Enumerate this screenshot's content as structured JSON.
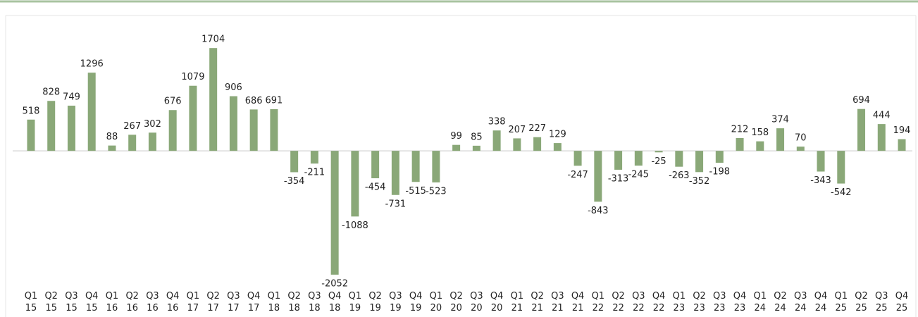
{
  "chart_data": {
    "type": "bar",
    "categories": [
      [
        "Q1",
        "15"
      ],
      [
        "Q2",
        "15"
      ],
      [
        "Q3",
        "15"
      ],
      [
        "Q4",
        "15"
      ],
      [
        "Q1",
        "16"
      ],
      [
        "Q2",
        "16"
      ],
      [
        "Q3",
        "16"
      ],
      [
        "Q4",
        "16"
      ],
      [
        "Q1",
        "17"
      ],
      [
        "Q2",
        "17"
      ],
      [
        "Q3",
        "17"
      ],
      [
        "Q4",
        "17"
      ],
      [
        "Q1",
        "18"
      ],
      [
        "Q2",
        "18"
      ],
      [
        "Q3",
        "18"
      ],
      [
        "Q4",
        "18"
      ],
      [
        "Q1",
        "19"
      ],
      [
        "Q2",
        "19"
      ],
      [
        "Q3",
        "19"
      ],
      [
        "Q4",
        "19"
      ],
      [
        "Q1",
        "20"
      ],
      [
        "Q2",
        "20"
      ],
      [
        "Q3",
        "20"
      ],
      [
        "Q4",
        "20"
      ],
      [
        "Q1",
        "21"
      ],
      [
        "Q2",
        "21"
      ],
      [
        "Q3",
        "21"
      ],
      [
        "Q4",
        "21"
      ],
      [
        "Q1",
        "22"
      ],
      [
        "Q2",
        "22"
      ],
      [
        "Q3",
        "22"
      ],
      [
        "Q4",
        "22"
      ],
      [
        "Q1",
        "23"
      ],
      [
        "Q2",
        "23"
      ],
      [
        "Q3",
        "23"
      ],
      [
        "Q4",
        "23"
      ],
      [
        "Q1",
        "24"
      ],
      [
        "Q2",
        "24"
      ],
      [
        "Q3",
        "24"
      ],
      [
        "Q4",
        "24"
      ],
      [
        "Q1",
        "25"
      ],
      [
        "Q2",
        "25"
      ],
      [
        "Q3",
        "25"
      ],
      [
        "Q4",
        "25"
      ]
    ],
    "values": [
      518,
      828,
      749,
      1296,
      88,
      267,
      302,
      676,
      1079,
      1704,
      906,
      686,
      691,
      -354,
      -211,
      -2052,
      -1088,
      -454,
      -731,
      -515,
      -523,
      99,
      85,
      338,
      207,
      227,
      129,
      -247,
      -843,
      -313,
      -245,
      -25,
      -263,
      -352,
      -198,
      212,
      158,
      374,
      70,
      -343,
      -542,
      694,
      444,
      194
    ],
    "color": "#8aa878",
    "ylim": [
      -2170,
      2150
    ],
    "grid": false
  }
}
